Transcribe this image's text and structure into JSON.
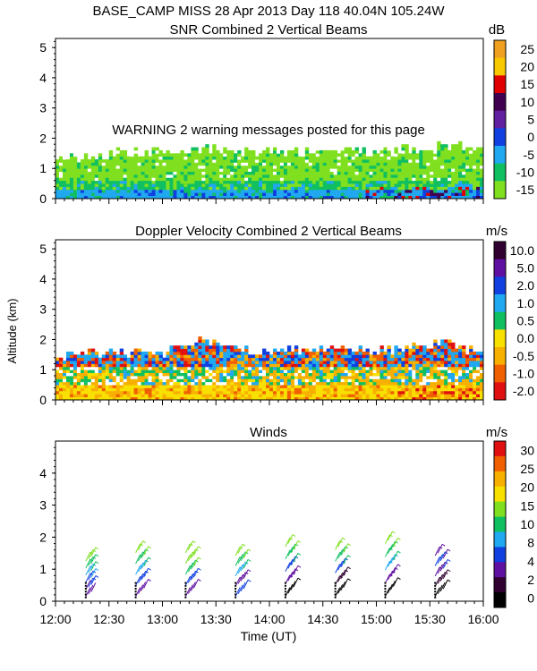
{
  "header": "BASE_CAMP MISS  28 Apr 2013 Day 118 40.04N 105.24W",
  "warning": "WARNING  2 warning messages posted for this page",
  "y_axis_label": "Altitude (km)",
  "x_axis_label": "Time (UT)",
  "time_ticks": [
    "12:00",
    "12:30",
    "13:00",
    "13:30",
    "14:00",
    "14:30",
    "15:00",
    "15:30",
    "16:00"
  ],
  "chart_data": [
    {
      "type": "heatmap",
      "title": "SNR Combined 2 Vertical Beams",
      "unit": "dB",
      "xlabel": "Time (UT)",
      "ylabel": "Altitude (km)",
      "xlim": [
        "12:00",
        "16:00"
      ],
      "ylim": [
        0,
        5.3
      ],
      "y_ticks": [
        0,
        1,
        2,
        3,
        4,
        5
      ],
      "colorbar_labels": [
        "25",
        "20",
        "15",
        "10",
        "5",
        "0",
        "-5",
        "-10",
        "-15"
      ],
      "colorbar_colors": [
        "#f0a020",
        "#f8c800",
        "#e00000",
        "#400050",
        "#6020a0",
        "#1040e0",
        "#20a8f0",
        "#10c060",
        "#80e020"
      ],
      "echo_top_km": [
        1.3,
        1.4,
        1.5,
        1.5,
        1.6,
        1.5,
        1.5,
        1.5,
        1.6,
        1.5,
        1.6,
        1.7,
        1.6
      ]
    },
    {
      "type": "heatmap",
      "title": "Doppler Velocity Combined 2 Vertical Beams",
      "unit": "m/s",
      "xlabel": "Time (UT)",
      "ylabel": "Altitude (km)",
      "xlim": [
        "12:00",
        "16:00"
      ],
      "ylim": [
        0,
        5.3
      ],
      "y_ticks": [
        0,
        1,
        2,
        3,
        4,
        5
      ],
      "colorbar_labels": [
        "10.0",
        "5.0",
        "2.0",
        "1.0",
        "0.5",
        "0.0",
        "-0.5",
        "-1.0",
        "-2.0"
      ],
      "colorbar_colors": [
        "#300030",
        "#6010a0",
        "#1040e0",
        "#20a8f0",
        "#10c060",
        "#f8e000",
        "#f8b000",
        "#f06000",
        "#e01010"
      ],
      "echo_top_km": [
        1.4,
        1.5,
        1.5,
        1.5,
        2.0,
        1.6,
        1.6,
        1.6,
        1.7,
        1.6,
        1.7,
        1.9,
        1.5
      ]
    },
    {
      "type": "scatter",
      "title": "Winds",
      "unit": "m/s",
      "xlabel": "Time (UT)",
      "ylabel": "Altitude (km)",
      "xlim": [
        "12:00",
        "16:00"
      ],
      "ylim": [
        0,
        5
      ],
      "y_ticks": [
        0,
        1,
        2,
        3,
        4
      ],
      "colorbar_labels": [
        "30",
        "25",
        "20",
        "15",
        "10",
        "8",
        "4",
        "2",
        "0"
      ],
      "colorbar_colors": [
        "#e01010",
        "#f06000",
        "#f8b000",
        "#f8e000",
        "#80e020",
        "#10c060",
        "#20a8f0",
        "#1040e0",
        "#6010a0",
        "#300030",
        "#000000"
      ],
      "profile_times": [
        "12:20",
        "12:48",
        "13:16",
        "13:44",
        "14:12",
        "14:40",
        "15:08",
        "15:36"
      ],
      "profile_tops_km": [
        1.4,
        1.6,
        1.6,
        1.5,
        1.8,
        1.7,
        1.9,
        1.5
      ],
      "barb_colors_by_height": [
        [
          "#6010a0",
          "#1040e0",
          "#20a8f0",
          "#10c060",
          "#80e020"
        ],
        [
          "#6010a0",
          "#1040e0",
          "#20a8f0",
          "#10c060",
          "#80e020"
        ],
        [
          "#6010a0",
          "#1040e0",
          "#10c060",
          "#80e020",
          "#80e020"
        ],
        [
          "#1040e0",
          "#6010a0",
          "#20a8f0",
          "#10c060",
          "#80e020"
        ],
        [
          "#000000",
          "#6010a0",
          "#1040e0",
          "#10c060",
          "#80e020"
        ],
        [
          "#000000",
          "#300030",
          "#1040e0",
          "#10c060",
          "#80e020"
        ],
        [
          "#000000",
          "#6010a0",
          "#20a8f0",
          "#10c060",
          "#80e020"
        ],
        [
          "#000000",
          "#300030",
          "#6010a0",
          "#1040e0",
          "#6010a0"
        ]
      ]
    }
  ]
}
